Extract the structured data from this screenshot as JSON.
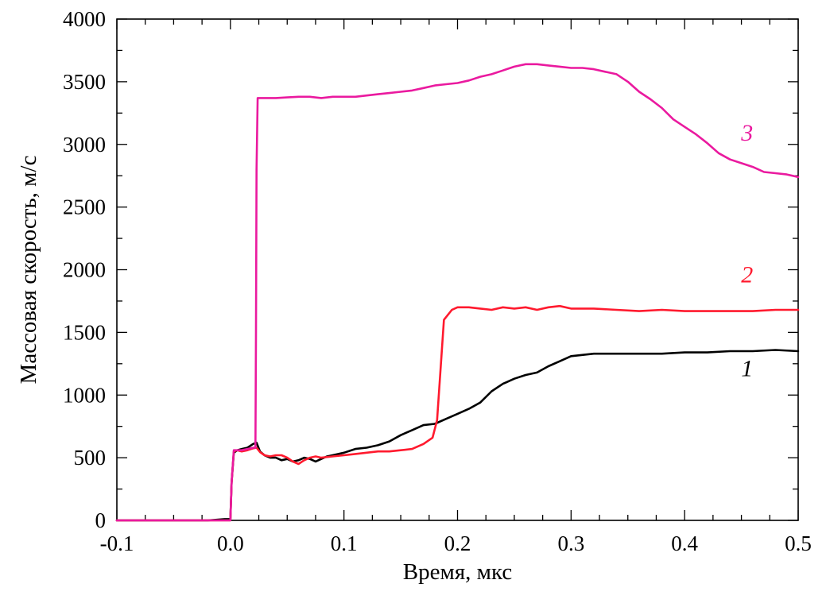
{
  "chart_data": {
    "type": "line",
    "xlabel": "Время, мкс",
    "ylabel": "Массовая скорость, м/с",
    "xlim": [
      -0.1,
      0.5
    ],
    "ylim": [
      0,
      4000
    ],
    "grid": false,
    "x_ticks": [
      -0.1,
      0.0,
      0.1,
      0.2,
      0.3,
      0.4,
      0.5
    ],
    "x_tick_labels": [
      "-0.1",
      "0.0",
      "0.1",
      "0.2",
      "0.3",
      "0.4",
      "0.5"
    ],
    "y_ticks": [
      0,
      500,
      1000,
      1500,
      2000,
      2500,
      3000,
      3500,
      4000
    ],
    "y_tick_labels": [
      "0",
      "500",
      "1000",
      "1500",
      "2000",
      "2500",
      "3000",
      "3500",
      "4000"
    ],
    "series": [
      {
        "name": "1",
        "color": "#000000",
        "label_at": [
          0.455,
          1150
        ],
        "points": [
          [
            -0.1,
            0
          ],
          [
            -0.06,
            0
          ],
          [
            -0.02,
            0
          ],
          [
            -0.005,
            10
          ],
          [
            0.0,
            10
          ],
          [
            0.001,
            300
          ],
          [
            0.003,
            540
          ],
          [
            0.006,
            560
          ],
          [
            0.01,
            570
          ],
          [
            0.015,
            580
          ],
          [
            0.02,
            610
          ],
          [
            0.023,
            620
          ],
          [
            0.026,
            550
          ],
          [
            0.03,
            520
          ],
          [
            0.035,
            500
          ],
          [
            0.04,
            500
          ],
          [
            0.045,
            480
          ],
          [
            0.05,
            490
          ],
          [
            0.055,
            470
          ],
          [
            0.06,
            480
          ],
          [
            0.065,
            500
          ],
          [
            0.07,
            490
          ],
          [
            0.075,
            470
          ],
          [
            0.08,
            490
          ],
          [
            0.085,
            510
          ],
          [
            0.09,
            520
          ],
          [
            0.1,
            540
          ],
          [
            0.11,
            570
          ],
          [
            0.12,
            580
          ],
          [
            0.13,
            600
          ],
          [
            0.14,
            630
          ],
          [
            0.15,
            680
          ],
          [
            0.16,
            720
          ],
          [
            0.17,
            760
          ],
          [
            0.18,
            770
          ],
          [
            0.19,
            810
          ],
          [
            0.2,
            850
          ],
          [
            0.21,
            890
          ],
          [
            0.22,
            940
          ],
          [
            0.23,
            1030
          ],
          [
            0.24,
            1090
          ],
          [
            0.25,
            1130
          ],
          [
            0.26,
            1160
          ],
          [
            0.27,
            1180
          ],
          [
            0.28,
            1230
          ],
          [
            0.29,
            1270
          ],
          [
            0.3,
            1310
          ],
          [
            0.32,
            1330
          ],
          [
            0.34,
            1330
          ],
          [
            0.36,
            1330
          ],
          [
            0.38,
            1330
          ],
          [
            0.4,
            1340
          ],
          [
            0.42,
            1340
          ],
          [
            0.44,
            1350
          ],
          [
            0.46,
            1350
          ],
          [
            0.48,
            1360
          ],
          [
            0.5,
            1350
          ]
        ]
      },
      {
        "name": "2",
        "color": "#ff1a2e",
        "label_at": [
          0.455,
          1900
        ],
        "points": [
          [
            -0.1,
            0
          ],
          [
            -0.06,
            0
          ],
          [
            -0.02,
            0
          ],
          [
            -0.005,
            0
          ],
          [
            0.0,
            0
          ],
          [
            0.001,
            300
          ],
          [
            0.003,
            550
          ],
          [
            0.006,
            560
          ],
          [
            0.01,
            550
          ],
          [
            0.015,
            560
          ],
          [
            0.02,
            575
          ],
          [
            0.023,
            580
          ],
          [
            0.026,
            545
          ],
          [
            0.03,
            520
          ],
          [
            0.035,
            510
          ],
          [
            0.04,
            520
          ],
          [
            0.045,
            520
          ],
          [
            0.05,
            500
          ],
          [
            0.055,
            470
          ],
          [
            0.06,
            450
          ],
          [
            0.065,
            480
          ],
          [
            0.07,
            500
          ],
          [
            0.075,
            510
          ],
          [
            0.08,
            500
          ],
          [
            0.09,
            510
          ],
          [
            0.1,
            520
          ],
          [
            0.11,
            530
          ],
          [
            0.12,
            540
          ],
          [
            0.13,
            550
          ],
          [
            0.14,
            550
          ],
          [
            0.15,
            560
          ],
          [
            0.16,
            570
          ],
          [
            0.17,
            610
          ],
          [
            0.178,
            660
          ],
          [
            0.182,
            800
          ],
          [
            0.185,
            1200
          ],
          [
            0.188,
            1600
          ],
          [
            0.195,
            1680
          ],
          [
            0.2,
            1700
          ],
          [
            0.21,
            1700
          ],
          [
            0.22,
            1690
          ],
          [
            0.23,
            1680
          ],
          [
            0.24,
            1700
          ],
          [
            0.25,
            1690
          ],
          [
            0.26,
            1700
          ],
          [
            0.27,
            1680
          ],
          [
            0.28,
            1700
          ],
          [
            0.29,
            1710
          ],
          [
            0.3,
            1690
          ],
          [
            0.32,
            1690
          ],
          [
            0.34,
            1680
          ],
          [
            0.36,
            1670
          ],
          [
            0.38,
            1680
          ],
          [
            0.4,
            1670
          ],
          [
            0.42,
            1670
          ],
          [
            0.44,
            1670
          ],
          [
            0.46,
            1670
          ],
          [
            0.48,
            1680
          ],
          [
            0.5,
            1680
          ]
        ]
      },
      {
        "name": "3",
        "color": "#ea1a9f",
        "label_at": [
          0.455,
          3030
        ],
        "points": [
          [
            -0.1,
            0
          ],
          [
            -0.06,
            0
          ],
          [
            -0.02,
            0
          ],
          [
            0.0,
            0
          ],
          [
            0.001,
            300
          ],
          [
            0.003,
            560
          ],
          [
            0.006,
            560
          ],
          [
            0.01,
            560
          ],
          [
            0.015,
            570
          ],
          [
            0.02,
            580
          ],
          [
            0.022,
            580
          ],
          [
            0.0225,
            1500
          ],
          [
            0.023,
            2800
          ],
          [
            0.024,
            3370
          ],
          [
            0.03,
            3370
          ],
          [
            0.04,
            3370
          ],
          [
            0.05,
            3375
          ],
          [
            0.06,
            3380
          ],
          [
            0.07,
            3380
          ],
          [
            0.08,
            3370
          ],
          [
            0.09,
            3380
          ],
          [
            0.1,
            3380
          ],
          [
            0.11,
            3380
          ],
          [
            0.12,
            3390
          ],
          [
            0.13,
            3400
          ],
          [
            0.14,
            3410
          ],
          [
            0.15,
            3420
          ],
          [
            0.16,
            3430
          ],
          [
            0.17,
            3450
          ],
          [
            0.18,
            3470
          ],
          [
            0.19,
            3480
          ],
          [
            0.2,
            3490
          ],
          [
            0.21,
            3510
          ],
          [
            0.22,
            3540
          ],
          [
            0.23,
            3560
          ],
          [
            0.24,
            3590
          ],
          [
            0.25,
            3620
          ],
          [
            0.26,
            3640
          ],
          [
            0.27,
            3640
          ],
          [
            0.28,
            3630
          ],
          [
            0.29,
            3620
          ],
          [
            0.3,
            3610
          ],
          [
            0.31,
            3610
          ],
          [
            0.32,
            3600
          ],
          [
            0.33,
            3580
          ],
          [
            0.34,
            3560
          ],
          [
            0.35,
            3500
          ],
          [
            0.36,
            3420
          ],
          [
            0.37,
            3360
          ],
          [
            0.38,
            3290
          ],
          [
            0.39,
            3200
          ],
          [
            0.4,
            3140
          ],
          [
            0.41,
            3080
          ],
          [
            0.42,
            3010
          ],
          [
            0.43,
            2930
          ],
          [
            0.44,
            2880
          ],
          [
            0.45,
            2850
          ],
          [
            0.46,
            2820
          ],
          [
            0.47,
            2780
          ],
          [
            0.48,
            2770
          ],
          [
            0.49,
            2760
          ],
          [
            0.5,
            2740
          ]
        ]
      }
    ]
  }
}
